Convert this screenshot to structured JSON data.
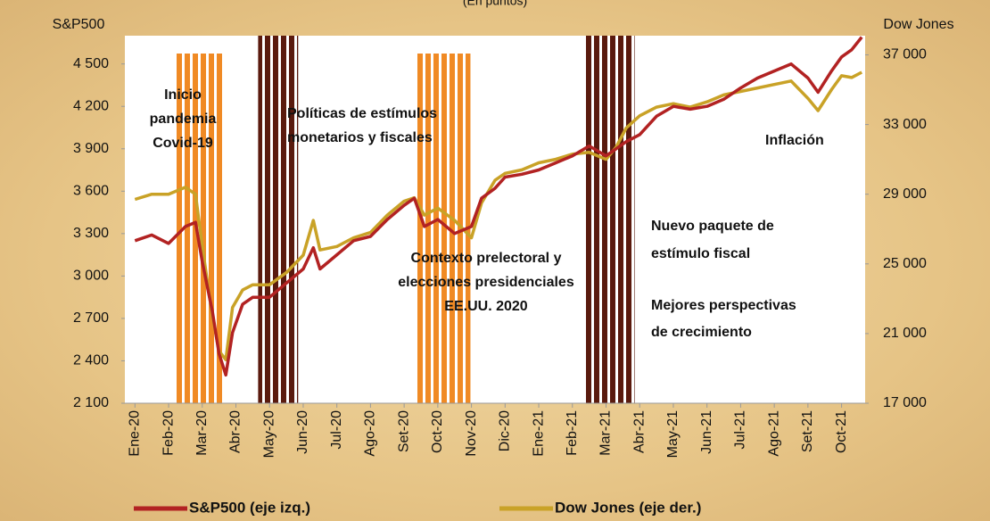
{
  "chart_data": {
    "type": "line",
    "title": "(En puntos)",
    "y_label": "S&P500",
    "y2_label": "Dow Jones",
    "xlim": [
      -0.3,
      21.7
    ],
    "xticks": [
      {
        "value": 0,
        "label": "Ene-20"
      },
      {
        "value": 1,
        "label": "Feb-20"
      },
      {
        "value": 2,
        "label": "Mar-20"
      },
      {
        "value": 3,
        "label": "Abr-20"
      },
      {
        "value": 4,
        "label": "May-20"
      },
      {
        "value": 5,
        "label": "Jun-20"
      },
      {
        "value": 6,
        "label": "Jul-20"
      },
      {
        "value": 7,
        "label": "Ago-20"
      },
      {
        "value": 8,
        "label": "Set-20"
      },
      {
        "value": 9,
        "label": "Oct-20"
      },
      {
        "value": 10,
        "label": "Nov-20"
      },
      {
        "value": 11,
        "label": "Dic-20"
      },
      {
        "value": 12,
        "label": "Ene-21"
      },
      {
        "value": 13,
        "label": "Feb-21"
      },
      {
        "value": 14,
        "label": "Mar-21"
      },
      {
        "value": 15,
        "label": "Abr-21"
      },
      {
        "value": 16,
        "label": "May-21"
      },
      {
        "value": 17,
        "label": "Jun-21"
      },
      {
        "value": 18,
        "label": "Jul-21"
      },
      {
        "value": 19,
        "label": "Ago-21"
      },
      {
        "value": 20,
        "label": "Set-21"
      },
      {
        "value": 21,
        "label": "Oct-21"
      }
    ],
    "ylim": [
      2100,
      4700
    ],
    "yticks": [
      {
        "value": 2100,
        "label": "2 100"
      },
      {
        "value": 2400,
        "label": "2 400"
      },
      {
        "value": 2700,
        "label": "2 700"
      },
      {
        "value": 3000,
        "label": "3 000"
      },
      {
        "value": 3300,
        "label": "3 300"
      },
      {
        "value": 3600,
        "label": "3 600"
      },
      {
        "value": 3900,
        "label": "3 900"
      },
      {
        "value": 4200,
        "label": "4 200"
      },
      {
        "value": 4500,
        "label": "4 500"
      }
    ],
    "y2lim": [
      17000,
      38100
    ],
    "y2ticks": [
      {
        "value": 17000,
        "label": "17 000"
      },
      {
        "value": 21000,
        "label": "21 000"
      },
      {
        "value": 25000,
        "label": "25 000"
      },
      {
        "value": 29000,
        "label": "29 000"
      },
      {
        "value": 33000,
        "label": "33 000"
      },
      {
        "value": 37000,
        "label": "37 000"
      }
    ],
    "x": [
      0,
      0.5,
      1,
      1.5,
      1.8,
      2.0,
      2.3,
      2.5,
      2.7,
      2.9,
      3.2,
      3.5,
      4,
      4.5,
      5,
      5.3,
      5.5,
      6,
      6.5,
      7,
      7.5,
      8,
      8.3,
      8.6,
      9,
      9.5,
      10,
      10.3,
      10.7,
      11,
      11.5,
      12,
      12.5,
      13,
      13.5,
      14,
      14.3,
      14.6,
      15,
      15.5,
      16,
      16.5,
      17,
      17.5,
      18,
      18.5,
      19,
      19.5,
      20,
      20.3,
      20.7,
      21,
      21.3,
      21.6
    ],
    "series": [
      {
        "name": "S&P500 (eje izq.)",
        "color": "#b22222",
        "axis": "y",
        "values": [
          3250,
          3290,
          3230,
          3350,
          3380,
          3100,
          2750,
          2450,
          2300,
          2600,
          2800,
          2850,
          2850,
          2950,
          3050,
          3200,
          3050,
          3150,
          3250,
          3280,
          3400,
          3500,
          3550,
          3350,
          3400,
          3300,
          3350,
          3550,
          3620,
          3700,
          3720,
          3750,
          3800,
          3850,
          3920,
          3850,
          3900,
          3950,
          4000,
          4130,
          4200,
          4180,
          4200,
          4250,
          4330,
          4400,
          4450,
          4500,
          4400,
          4300,
          4450,
          4550,
          4600,
          4690
        ]
      },
      {
        "name": "Dow Jones (eje der.)",
        "color": "#c9a227",
        "axis": "y2",
        "values": [
          28700,
          29000,
          29000,
          29400,
          29000,
          26000,
          22000,
          20000,
          19500,
          22500,
          23500,
          23800,
          23800,
          24500,
          25500,
          27500,
          25800,
          26000,
          26500,
          26800,
          27800,
          28600,
          28800,
          27800,
          28200,
          27500,
          26500,
          28500,
          29800,
          30200,
          30400,
          30800,
          31000,
          31300,
          31400,
          31000,
          31700,
          32800,
          33500,
          34000,
          34200,
          34000,
          34300,
          34700,
          34900,
          35100,
          35300,
          35500,
          34500,
          33800,
          35000,
          35800,
          35700,
          36000
        ]
      }
    ],
    "bands": [
      {
        "x": [
          1.22,
          2.6
        ],
        "color": "#f08a24"
      },
      {
        "x": [
          3.66,
          4.85
        ],
        "color": "#5a1a0e"
      },
      {
        "x": [
          8.38,
          9.97
        ],
        "color": "#f08a24"
      },
      {
        "x": [
          13.34,
          14.85
        ],
        "color": "#5a1a0e"
      }
    ],
    "annotations": [
      {
        "lines": [
          "Inicio",
          "pandemia",
          "Covid-19"
        ]
      },
      {
        "lines": [
          "Políticas de estímulos",
          "monetarios y fiscales"
        ]
      },
      {
        "lines": [
          "Contexto prelectoral y",
          "elecciones presidenciales",
          "EE.UU. 2020"
        ]
      },
      {
        "lines": [
          "Nuevo  paquete de",
          "estímulo fiscal"
        ]
      },
      {
        "lines": [
          "Mejores perspectivas",
          "de crecimiento"
        ]
      },
      {
        "lines": [
          "Inflación"
        ]
      }
    ]
  }
}
